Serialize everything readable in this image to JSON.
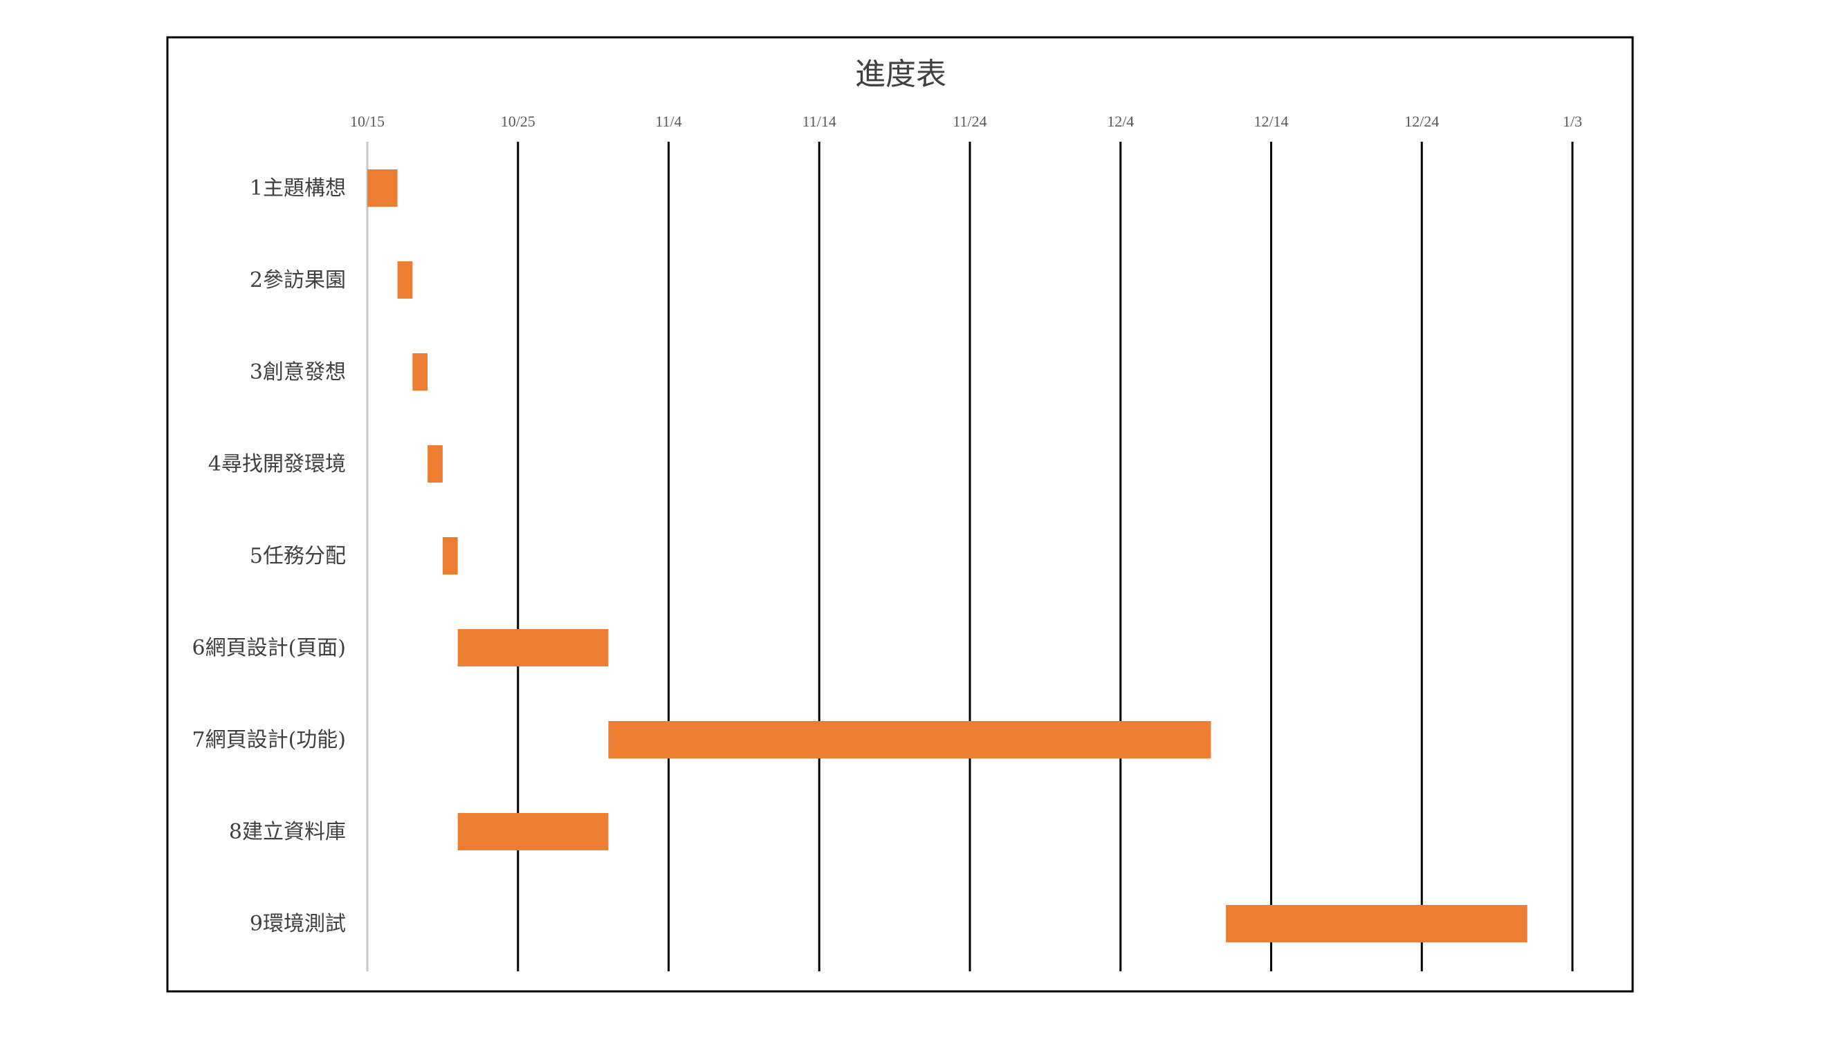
{
  "chart_data": {
    "type": "bar",
    "orientation": "horizontal-gantt",
    "title": "進度表",
    "x_axis": {
      "type": "date",
      "year": 2019,
      "min": "2019-10-15",
      "max": "2020-01-03",
      "tick_labels": [
        "10/15",
        "10/25",
        "11/4",
        "11/14",
        "11/24",
        "12/4",
        "12/14",
        "12/24",
        "1/3"
      ],
      "tick_dates": [
        "2019-10-15",
        "2019-10-25",
        "2019-11-04",
        "2019-11-14",
        "2019-11-24",
        "2019-12-04",
        "2019-12-14",
        "2019-12-24",
        "2020-01-03"
      ],
      "position": "top"
    },
    "grid": true,
    "legend": false,
    "bar_color": "#ED7D31",
    "tasks": [
      {
        "label": "1主題構想",
        "start": "2019-10-15",
        "end": "2019-10-17"
      },
      {
        "label": "2參訪果園",
        "start": "2019-10-17",
        "end": "2019-10-18"
      },
      {
        "label": "3創意發想",
        "start": "2019-10-18",
        "end": "2019-10-19"
      },
      {
        "label": "4尋找開發環境",
        "start": "2019-10-19",
        "end": "2019-10-20"
      },
      {
        "label": "5任務分配",
        "start": "2019-10-20",
        "end": "2019-10-21"
      },
      {
        "label": "6網頁設計(頁面)",
        "start": "2019-10-21",
        "end": "2019-10-31"
      },
      {
        "label": "7網頁設計(功能)",
        "start": "2019-10-31",
        "end": "2019-12-10"
      },
      {
        "label": "8建立資料庫",
        "start": "2019-10-21",
        "end": "2019-10-31"
      },
      {
        "label": "9環境測試",
        "start": "2019-12-11",
        "end": "2019-12-31"
      }
    ]
  }
}
